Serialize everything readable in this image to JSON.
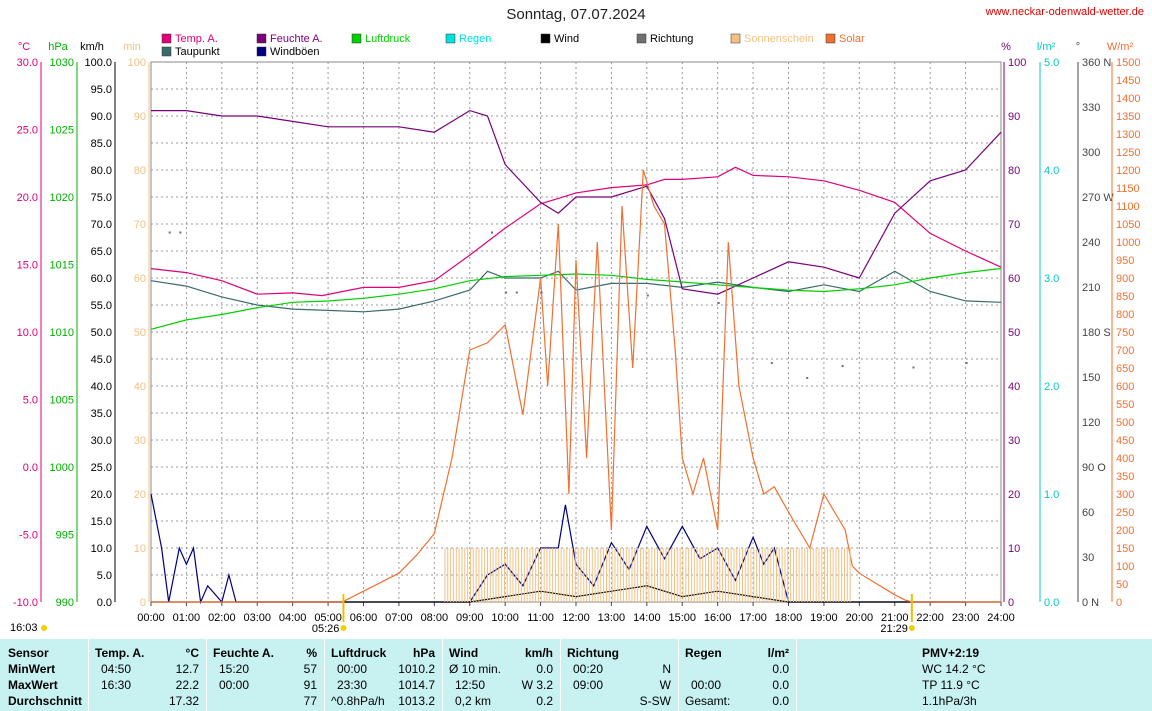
{
  "title": "Sonntag, 07.07.2024",
  "website": "www.neckar-odenwald-wetter.de",
  "legend": [
    {
      "label": "Temp. A.",
      "color": "#e0007a"
    },
    {
      "label": "Taupunkt",
      "color": "#3a6b6b"
    },
    {
      "label": "Feuchte A.",
      "color": "#7a007a"
    },
    {
      "label": "Windböen",
      "color": "#000080"
    },
    {
      "label": "Luftdruck",
      "color": "#00d000"
    },
    {
      "label": "Regen",
      "color": "#00e0e0"
    },
    {
      "label": "Wind",
      "color": "#000000"
    },
    {
      "label": "Richtung",
      "color": "#707070"
    },
    {
      "label": "Sonnenschein",
      "color": "#f5c080"
    },
    {
      "label": "Solar",
      "color": "#f07030"
    }
  ],
  "axis_units": {
    "temp": "°C",
    "pressure": "hPa",
    "wind": "km/h",
    "sun": "min",
    "humidity": "%",
    "rain": "l/m²",
    "direction": "°",
    "solar": "W/m²"
  },
  "sunrise": "05:26",
  "sunset": "21:29",
  "current_time": "16:03",
  "chart_data": {
    "type": "line",
    "x_unit": "time of day",
    "x_ticks": [
      "00:00",
      "01:00",
      "02:00",
      "03:00",
      "04:00",
      "05:00",
      "06:00",
      "07:00",
      "08:00",
      "09:00",
      "10:00",
      "11:00",
      "12:00",
      "13:00",
      "14:00",
      "15:00",
      "16:00",
      "17:00",
      "18:00",
      "19:00",
      "20:00",
      "21:00",
      "22:00",
      "23:00",
      "24:00"
    ],
    "axes": {
      "temp": {
        "ticks": [
          "30.0",
          "25.0",
          "20.0",
          "15.0",
          "10.0",
          "5.0",
          "0.0",
          "-5.0",
          "-10.0"
        ],
        "range": [
          -10,
          30
        ]
      },
      "pressure": {
        "ticks": [
          "1030",
          "1025",
          "1020",
          "1015",
          "1010",
          "1005",
          "1000",
          "995",
          "990"
        ],
        "range": [
          990,
          1030
        ]
      },
      "wind": {
        "ticks": [
          "100.0",
          "95.0",
          "90.0",
          "85.0",
          "80.0",
          "75.0",
          "70.0",
          "65.0",
          "60.0",
          "55.0",
          "50.0",
          "45.0",
          "40.0",
          "35.0",
          "30.0",
          "25.0",
          "20.0",
          "15.0",
          "10.0",
          "5.0",
          "0.0"
        ],
        "range": [
          0,
          100
        ]
      },
      "sun": {
        "ticks": [
          "100",
          "90",
          "80",
          "70",
          "60",
          "50",
          "40",
          "30",
          "20",
          "10",
          "0"
        ],
        "range": [
          0,
          100
        ]
      },
      "humidity": {
        "ticks": [
          "100",
          "90",
          "80",
          "70",
          "60",
          "50",
          "40",
          "30",
          "20",
          "10",
          "0"
        ],
        "range": [
          0,
          100
        ]
      },
      "rain": {
        "ticks": [
          "5.0",
          "4.0",
          "3.0",
          "2.0",
          "1.0",
          "0.0"
        ],
        "range": [
          0,
          5
        ]
      },
      "direction": {
        "ticks": [
          "360 N",
          "330",
          "300",
          "270 W",
          "240",
          "210",
          "180 S",
          "150",
          "120",
          "90 O",
          "60",
          "30",
          "0 N"
        ],
        "range": [
          0,
          360
        ]
      },
      "solar": {
        "ticks": [
          "1500",
          "1450",
          "1400",
          "1350",
          "1300",
          "1250",
          "1200",
          "1150",
          "1100",
          "1050",
          "1000",
          "950",
          "900",
          "850",
          "800",
          "750",
          "700",
          "650",
          "600",
          "550",
          "500",
          "450",
          "400",
          "350",
          "300",
          "250",
          "200",
          "150",
          "100",
          "50",
          "0"
        ],
        "range": [
          0,
          1500
        ]
      }
    },
    "series": [
      {
        "name": "Temp. A.",
        "axis": "temp",
        "x": [
          0,
          1,
          2,
          3,
          4,
          4.83,
          6,
          7,
          8,
          9,
          10,
          11,
          11.5,
          12,
          13,
          14,
          14.5,
          15,
          16,
          16.5,
          17,
          18,
          19,
          20,
          21,
          22,
          23,
          23.5,
          24
        ],
        "y": [
          14.7,
          14.4,
          13.8,
          12.8,
          12.9,
          12.7,
          13.3,
          13.3,
          13.8,
          15.7,
          17.7,
          19.5,
          19.9,
          20.3,
          20.7,
          20.9,
          21.3,
          21.3,
          21.5,
          22.2,
          21.6,
          21.5,
          21.2,
          20.5,
          19.6,
          17.3,
          16.0,
          15.4,
          14.8
        ]
      },
      {
        "name": "Taupunkt",
        "axis": "temp",
        "x": [
          0,
          1,
          2,
          3,
          4,
          5,
          6,
          7,
          8,
          9,
          9.5,
          10,
          11,
          11.5,
          12,
          13,
          14,
          15,
          16,
          17,
          18,
          19,
          20,
          21,
          22,
          23,
          24
        ],
        "y": [
          13.8,
          13.4,
          12.6,
          12.0,
          11.7,
          11.6,
          11.5,
          11.7,
          12.3,
          13.1,
          14.5,
          14.0,
          14.0,
          14.5,
          13.1,
          13.6,
          13.6,
          13.3,
          13.7,
          13.3,
          13.0,
          13.5,
          13.0,
          14.5,
          13.0,
          12.3,
          12.2
        ]
      },
      {
        "name": "Feuchte A.",
        "axis": "humidity",
        "x": [
          0,
          1,
          2,
          3,
          4,
          5,
          6,
          7,
          8,
          9,
          9.5,
          10,
          11,
          11.5,
          12,
          13,
          14,
          14.5,
          15,
          16,
          17,
          18,
          19,
          20,
          21,
          22,
          23,
          24
        ],
        "y": [
          91,
          91,
          90,
          90,
          89,
          88,
          88,
          88,
          87,
          91,
          90,
          81,
          74,
          72,
          75,
          75,
          77,
          71,
          58,
          57,
          60,
          63,
          62,
          60,
          72,
          78,
          80,
          87
        ]
      },
      {
        "name": "Luftdruck",
        "axis": "pressure",
        "x": [
          0,
          1,
          2,
          3,
          4,
          5,
          6,
          7,
          8,
          9,
          10,
          11,
          12,
          13,
          14,
          15,
          16,
          17,
          18,
          19,
          20,
          21,
          22,
          23,
          24
        ],
        "y": [
          1010.2,
          1010.9,
          1011.3,
          1011.8,
          1012.2,
          1012.3,
          1012.5,
          1012.8,
          1013.2,
          1013.8,
          1014.1,
          1014.2,
          1014.3,
          1014.2,
          1013.9,
          1013.7,
          1013.5,
          1013.3,
          1013.1,
          1013.0,
          1013.2,
          1013.5,
          1014.0,
          1014.4,
          1014.7
        ]
      },
      {
        "name": "Windböen",
        "axis": "wind",
        "x": [
          0,
          0.3,
          0.5,
          0.8,
          1.0,
          1.2,
          1.4,
          1.6,
          2.0,
          2.2,
          2.4,
          2.6,
          8,
          9,
          9.5,
          10,
          10.5,
          11,
          11.5,
          11.7,
          12,
          12.5,
          13,
          13.5,
          14,
          14.5,
          15,
          15.5,
          16,
          16.5,
          17,
          17.3,
          17.6,
          18,
          23
        ],
        "y": [
          20,
          10,
          0,
          10,
          7,
          10,
          0,
          3,
          0,
          5,
          0,
          0,
          0,
          0,
          5,
          7,
          3,
          10,
          10,
          18,
          7,
          3,
          11,
          6,
          14,
          8,
          14,
          8,
          10,
          4,
          12,
          7,
          10,
          0,
          0
        ]
      },
      {
        "name": "Wind",
        "axis": "wind",
        "x": [
          0,
          1,
          2,
          8,
          9,
          10,
          11,
          12,
          13,
          14,
          15,
          16,
          17,
          18,
          24
        ],
        "y": [
          0,
          0,
          0,
          0,
          0,
          1,
          2,
          1,
          2,
          3,
          1,
          2,
          1,
          0,
          0
        ]
      },
      {
        "name": "Solar",
        "axis": "solar",
        "x": [
          0,
          5.4,
          6,
          7,
          7.5,
          8,
          8.5,
          9,
          9.5,
          10,
          10.5,
          11,
          11.2,
          11.5,
          11.8,
          12,
          12.3,
          12.6,
          13,
          13.3,
          13.6,
          13.9,
          14.2,
          14.5,
          14.8,
          15,
          15.3,
          15.6,
          16,
          16.3,
          16.6,
          17,
          17.3,
          17.6,
          18,
          18.3,
          18.6,
          19,
          19.3,
          19.6,
          19.8,
          20,
          20.5,
          21,
          21.3,
          21.5,
          24
        ],
        "y": [
          0,
          0,
          30,
          80,
          130,
          190,
          400,
          700,
          720,
          770,
          520,
          900,
          600,
          1050,
          300,
          950,
          400,
          1000,
          200,
          1100,
          650,
          1200,
          1100,
          1050,
          700,
          400,
          300,
          400,
          200,
          1000,
          600,
          400,
          300,
          320,
          250,
          200,
          150,
          300,
          250,
          200,
          100,
          80,
          50,
          20,
          5,
          0,
          0
        ]
      },
      {
        "name": "Sonnenschein",
        "axis": "sun",
        "x": [
          8.3,
          19.8
        ],
        "y": [
          10,
          10
        ]
      },
      {
        "name": "Richtung",
        "axis": "direction",
        "x": [
          0.5,
          0.8,
          9.6,
          10,
          10.3,
          11,
          14,
          16,
          17.5,
          18.5,
          19.5,
          21.5,
          23
        ],
        "y": [
          247,
          247,
          247,
          207,
          207,
          207,
          205,
          200,
          160,
          150,
          158,
          157,
          160
        ]
      }
    ]
  },
  "table": {
    "headers": {
      "sensor": "Sensor",
      "temp": "Temp. A.",
      "temp_unit": "°C",
      "hum": "Feuchte A.",
      "hum_unit": "%",
      "press": "Luftdruck",
      "press_unit": "hPa",
      "wind": "Wind",
      "wind_unit": "km/h",
      "dir": "Richtung",
      "rain": "Regen",
      "rain_unit": "l/m²",
      "pmv": "PMV+2:19"
    },
    "rows": [
      {
        "label": "MinWert",
        "temp_t": "04:50",
        "temp_v": "12.7",
        "hum_t": "15:20",
        "hum_v": "57",
        "press_t": "00:00",
        "press_v": "1010.2",
        "wind_t": "Ø 10 min.",
        "wind_v": "0.0",
        "dir_t": "00:20",
        "dir_v": "N",
        "rain_t": "",
        "rain_v": "0.0",
        "pmv": "WC 14.2 °C"
      },
      {
        "label": "MaxWert",
        "temp_t": "16:30",
        "temp_v": "22.2",
        "hum_t": "00:00",
        "hum_v": "91",
        "press_t": "23:30",
        "press_v": "1014.7",
        "wind_t": "12:50",
        "wind_v": "W 3.2",
        "dir_t": "09:00",
        "dir_v": "W",
        "rain_t": "00:00",
        "rain_v": "0.0",
        "pmv": "TP 11.9 °C"
      },
      {
        "label": "Durchschnitt",
        "temp_t": "",
        "temp_v": "17.32",
        "hum_t": "",
        "hum_v": "77",
        "press_t": "^0.8hPa/h",
        "press_v": "1013.2",
        "wind_t": "0,2 km",
        "wind_v": "0.2",
        "dir_t": "",
        "dir_v": "S-SW",
        "rain_t": "Gesamt:",
        "rain_v": "0.0",
        "pmv": "1.1hPa/3h"
      }
    ]
  }
}
